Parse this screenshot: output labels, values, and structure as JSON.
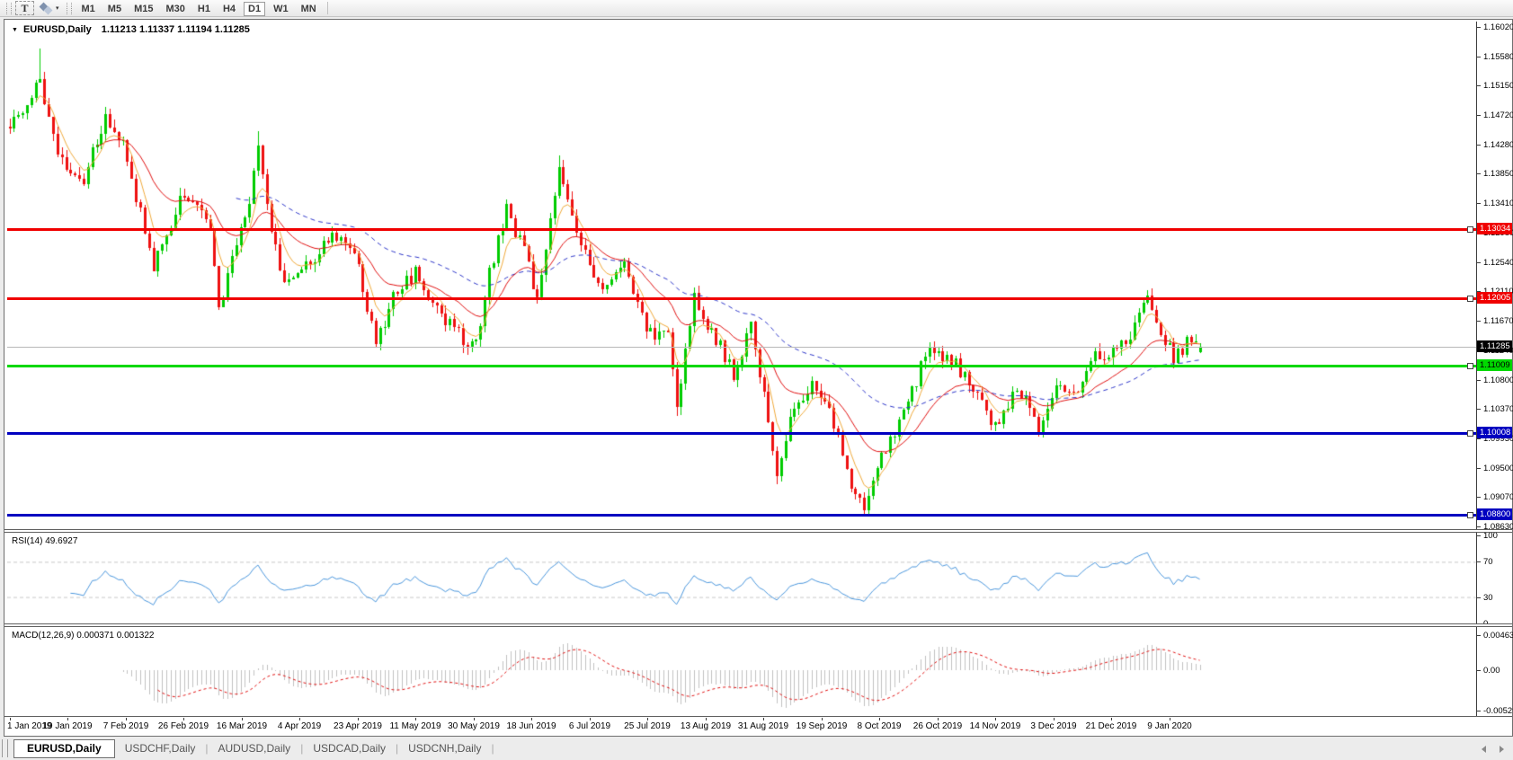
{
  "toolbar": {
    "text_tool_label": "T",
    "arrows_tool": {
      "icon": "diamond-arrows-icon",
      "caret": "▾"
    },
    "timeframes": [
      {
        "label": "M1",
        "active": false
      },
      {
        "label": "M5",
        "active": false
      },
      {
        "label": "M15",
        "active": false
      },
      {
        "label": "M30",
        "active": false
      },
      {
        "label": "H1",
        "active": false
      },
      {
        "label": "H4",
        "active": false
      },
      {
        "label": "D1",
        "active": true
      },
      {
        "label": "W1",
        "active": false
      },
      {
        "label": "MN",
        "active": false
      }
    ]
  },
  "chart": {
    "title": {
      "dropdown_icon": "▼",
      "symbol": "EURUSD,Daily",
      "ohlc": "1.11213 1.11337 1.11194 1.11285"
    },
    "price_axis_ticks": [
      "1.16020",
      "1.15580",
      "1.15150",
      "1.14720",
      "1.14280",
      "1.13850",
      "1.13410",
      "1.12980",
      "1.12540",
      "1.12110",
      "1.11670",
      "1.11240",
      "1.10800",
      "1.10370",
      "1.09930",
      "1.09500",
      "1.09070",
      "1.08630"
    ],
    "levels": [
      {
        "price": 1.13034,
        "label": "1.13034",
        "color": "#f00000",
        "text_color": "#ffffff",
        "thickness": 3
      },
      {
        "price": 1.12005,
        "label": "1.12005",
        "color": "#f00000",
        "text_color": "#ffffff",
        "thickness": 3
      },
      {
        "price": 1.11009,
        "label": "1.11009",
        "color": "#00d800",
        "text_color": "#000000",
        "thickness": 3
      },
      {
        "price": 1.10008,
        "label": "1.10008",
        "color": "#0000c0",
        "text_color": "#ffffff",
        "thickness": 3
      },
      {
        "price": 1.088,
        "label": "1.08800",
        "color": "#0000c0",
        "text_color": "#ffffff",
        "thickness": 3
      }
    ],
    "current_price": {
      "price": 1.11285,
      "label": "1.11285",
      "line_color": "#b8b8b8",
      "badge_color": "#000000",
      "text_color": "#ffffff"
    }
  },
  "chart_data": {
    "type": "candlestick",
    "symbol": "EURUSD",
    "timeframe": "Daily",
    "ohlc_current": {
      "open": 1.11213,
      "high": 1.11337,
      "low": 1.11194,
      "close": 1.11285
    },
    "price_axis_range": {
      "top": 1.16153,
      "bottom": 1.08551
    },
    "horizontal_levels": [
      1.13034,
      1.12005,
      1.11009,
      1.10008,
      1.088
    ],
    "candle_count": 274,
    "trend_anchors": [
      [
        0,
        1.1455
      ],
      [
        7,
        1.152
      ],
      [
        12,
        1.14
      ],
      [
        17,
        1.138
      ],
      [
        22,
        1.147
      ],
      [
        26,
        1.143
      ],
      [
        33,
        1.125
      ],
      [
        40,
        1.136
      ],
      [
        46,
        1.13
      ],
      [
        48,
        1.119
      ],
      [
        55,
        1.134
      ],
      [
        57,
        1.143
      ],
      [
        60,
        1.13
      ],
      [
        63,
        1.122
      ],
      [
        70,
        1.126
      ],
      [
        74,
        1.13
      ],
      [
        80,
        1.125
      ],
      [
        84,
        1.113
      ],
      [
        88,
        1.12
      ],
      [
        93,
        1.124
      ],
      [
        97,
        1.12
      ],
      [
        102,
        1.115
      ],
      [
        107,
        1.113
      ],
      [
        110,
        1.124
      ],
      [
        114,
        1.133
      ],
      [
        118,
        1.127
      ],
      [
        121,
        1.12
      ],
      [
        126,
        1.14
      ],
      [
        130,
        1.129
      ],
      [
        136,
        1.121
      ],
      [
        141,
        1.126
      ],
      [
        146,
        1.115
      ],
      [
        151,
        1.115
      ],
      [
        153,
        1.104
      ],
      [
        157,
        1.12
      ],
      [
        162,
        1.114
      ],
      [
        166,
        1.109
      ],
      [
        170,
        1.116
      ],
      [
        173,
        1.106
      ],
      [
        176,
        1.094
      ],
      [
        180,
        1.104
      ],
      [
        184,
        1.107
      ],
      [
        188,
        1.104
      ],
      [
        192,
        1.094
      ],
      [
        196,
        1.089
      ],
      [
        200,
        1.097
      ],
      [
        205,
        1.103
      ],
      [
        211,
        1.113
      ],
      [
        216,
        1.111
      ],
      [
        221,
        1.107
      ],
      [
        226,
        1.101
      ],
      [
        231,
        1.107
      ],
      [
        236,
        1.101
      ],
      [
        240,
        1.108
      ],
      [
        244,
        1.106
      ],
      [
        249,
        1.112
      ],
      [
        253,
        1.112
      ],
      [
        257,
        1.115
      ],
      [
        261,
        1.121
      ],
      [
        263,
        1.117
      ],
      [
        267,
        1.111
      ],
      [
        270,
        1.1135
      ],
      [
        273,
        1.11285
      ]
    ],
    "wick_spikes": [
      {
        "i": 7,
        "high": 1.157
      },
      {
        "i": 57,
        "high": 1.1448
      },
      {
        "i": 126,
        "high": 1.1412
      },
      {
        "i": 153,
        "low": 1.1027
      },
      {
        "i": 176,
        "low": 1.0926
      },
      {
        "i": 196,
        "low": 1.0879
      }
    ],
    "bull_color": "#00cc00",
    "bear_color": "#ee1111",
    "moving_averages": [
      {
        "period": 6,
        "color": "#efa93a",
        "style": "solid"
      },
      {
        "period": 20,
        "color": "#e01010",
        "style": "solid"
      },
      {
        "period": 52,
        "color": "#2b34c8",
        "style": "dashed"
      }
    ],
    "rsi": {
      "period": 14,
      "current": 49.6927,
      "color": "#4a96dc",
      "overbought": 70,
      "oversold": 30
    },
    "macd": {
      "fast": 12,
      "slow": 26,
      "signal_period": 9,
      "main": 0.000371,
      "signal": 0.001322,
      "histogram_color": "#c0c0c0",
      "signal_color": "#e01010"
    }
  },
  "rsi_panel": {
    "label": "RSI(14) 49.6927",
    "axis_labels": [
      {
        "text": "100",
        "value": 100,
        "dashed": false
      },
      {
        "text": "70",
        "value": 70,
        "dashed": true
      },
      {
        "text": "30",
        "value": 30,
        "dashed": true
      },
      {
        "text": "0",
        "value": 0,
        "dashed": false
      }
    ]
  },
  "macd_panel": {
    "label": "MACD(12,26,9) 0.000371 0.001322",
    "axis_labels": [
      {
        "text": "0.00463",
        "value": 0.00463
      },
      {
        "text": "0.00",
        "value": 0
      },
      {
        "text": "-0.00529",
        "value": -0.00529
      }
    ]
  },
  "date_axis": {
    "labels": [
      "1 Jan 2019",
      "19 Jan 2019",
      "7 Feb 2019",
      "26 Feb 2019",
      "16 Mar 2019",
      "4 Apr 2019",
      "23 Apr 2019",
      "11 May 2019",
      "30 May 2019",
      "18 Jun 2019",
      "6 Jul 2019",
      "25 Jul 2019",
      "13 Aug 2019",
      "31 Aug 2019",
      "19 Sep 2019",
      "8 Oct 2019",
      "26 Oct 2019",
      "14 Nov 2019",
      "3 Dec 2019",
      "21 Dec 2019",
      "9 Jan 2020"
    ]
  },
  "tabs": {
    "items": [
      {
        "label": "EURUSD,Daily",
        "active": true
      },
      {
        "label": "USDCHF,Daily",
        "active": false
      },
      {
        "label": "AUDUSD,Daily",
        "active": false
      },
      {
        "label": "USDCAD,Daily",
        "active": false
      },
      {
        "label": "USDCNH,Daily",
        "active": false
      }
    ]
  }
}
